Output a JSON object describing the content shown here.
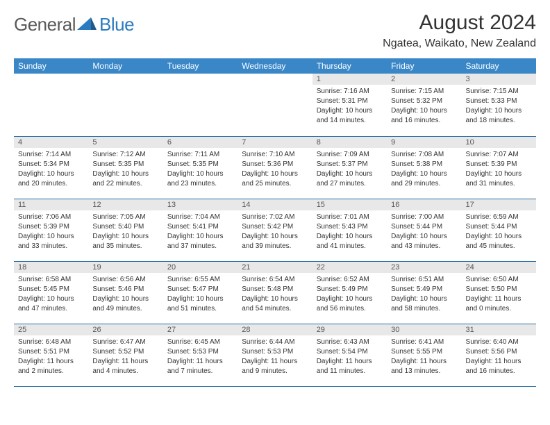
{
  "brand": {
    "text_general": "General",
    "text_blue": "Blue",
    "icon_fill": "#2b7bbf"
  },
  "title": "August 2024",
  "location": "Ngatea, Waikato, New Zealand",
  "colors": {
    "header_bg": "#3a87c8",
    "header_text": "#ffffff",
    "daynum_bg": "#e8e8e8",
    "daynum_text": "#555555",
    "border": "#2b6fa8",
    "body_text": "#333333"
  },
  "weekdays": [
    "Sunday",
    "Monday",
    "Tuesday",
    "Wednesday",
    "Thursday",
    "Friday",
    "Saturday"
  ],
  "weeks": [
    [
      null,
      null,
      null,
      null,
      {
        "n": "1",
        "sunrise": "Sunrise: 7:16 AM",
        "sunset": "Sunset: 5:31 PM",
        "daylight": "Daylight: 10 hours and 14 minutes."
      },
      {
        "n": "2",
        "sunrise": "Sunrise: 7:15 AM",
        "sunset": "Sunset: 5:32 PM",
        "daylight": "Daylight: 10 hours and 16 minutes."
      },
      {
        "n": "3",
        "sunrise": "Sunrise: 7:15 AM",
        "sunset": "Sunset: 5:33 PM",
        "daylight": "Daylight: 10 hours and 18 minutes."
      }
    ],
    [
      {
        "n": "4",
        "sunrise": "Sunrise: 7:14 AM",
        "sunset": "Sunset: 5:34 PM",
        "daylight": "Daylight: 10 hours and 20 minutes."
      },
      {
        "n": "5",
        "sunrise": "Sunrise: 7:12 AM",
        "sunset": "Sunset: 5:35 PM",
        "daylight": "Daylight: 10 hours and 22 minutes."
      },
      {
        "n": "6",
        "sunrise": "Sunrise: 7:11 AM",
        "sunset": "Sunset: 5:35 PM",
        "daylight": "Daylight: 10 hours and 23 minutes."
      },
      {
        "n": "7",
        "sunrise": "Sunrise: 7:10 AM",
        "sunset": "Sunset: 5:36 PM",
        "daylight": "Daylight: 10 hours and 25 minutes."
      },
      {
        "n": "8",
        "sunrise": "Sunrise: 7:09 AM",
        "sunset": "Sunset: 5:37 PM",
        "daylight": "Daylight: 10 hours and 27 minutes."
      },
      {
        "n": "9",
        "sunrise": "Sunrise: 7:08 AM",
        "sunset": "Sunset: 5:38 PM",
        "daylight": "Daylight: 10 hours and 29 minutes."
      },
      {
        "n": "10",
        "sunrise": "Sunrise: 7:07 AM",
        "sunset": "Sunset: 5:39 PM",
        "daylight": "Daylight: 10 hours and 31 minutes."
      }
    ],
    [
      {
        "n": "11",
        "sunrise": "Sunrise: 7:06 AM",
        "sunset": "Sunset: 5:39 PM",
        "daylight": "Daylight: 10 hours and 33 minutes."
      },
      {
        "n": "12",
        "sunrise": "Sunrise: 7:05 AM",
        "sunset": "Sunset: 5:40 PM",
        "daylight": "Daylight: 10 hours and 35 minutes."
      },
      {
        "n": "13",
        "sunrise": "Sunrise: 7:04 AM",
        "sunset": "Sunset: 5:41 PM",
        "daylight": "Daylight: 10 hours and 37 minutes."
      },
      {
        "n": "14",
        "sunrise": "Sunrise: 7:02 AM",
        "sunset": "Sunset: 5:42 PM",
        "daylight": "Daylight: 10 hours and 39 minutes."
      },
      {
        "n": "15",
        "sunrise": "Sunrise: 7:01 AM",
        "sunset": "Sunset: 5:43 PM",
        "daylight": "Daylight: 10 hours and 41 minutes."
      },
      {
        "n": "16",
        "sunrise": "Sunrise: 7:00 AM",
        "sunset": "Sunset: 5:44 PM",
        "daylight": "Daylight: 10 hours and 43 minutes."
      },
      {
        "n": "17",
        "sunrise": "Sunrise: 6:59 AM",
        "sunset": "Sunset: 5:44 PM",
        "daylight": "Daylight: 10 hours and 45 minutes."
      }
    ],
    [
      {
        "n": "18",
        "sunrise": "Sunrise: 6:58 AM",
        "sunset": "Sunset: 5:45 PM",
        "daylight": "Daylight: 10 hours and 47 minutes."
      },
      {
        "n": "19",
        "sunrise": "Sunrise: 6:56 AM",
        "sunset": "Sunset: 5:46 PM",
        "daylight": "Daylight: 10 hours and 49 minutes."
      },
      {
        "n": "20",
        "sunrise": "Sunrise: 6:55 AM",
        "sunset": "Sunset: 5:47 PM",
        "daylight": "Daylight: 10 hours and 51 minutes."
      },
      {
        "n": "21",
        "sunrise": "Sunrise: 6:54 AM",
        "sunset": "Sunset: 5:48 PM",
        "daylight": "Daylight: 10 hours and 54 minutes."
      },
      {
        "n": "22",
        "sunrise": "Sunrise: 6:52 AM",
        "sunset": "Sunset: 5:49 PM",
        "daylight": "Daylight: 10 hours and 56 minutes."
      },
      {
        "n": "23",
        "sunrise": "Sunrise: 6:51 AM",
        "sunset": "Sunset: 5:49 PM",
        "daylight": "Daylight: 10 hours and 58 minutes."
      },
      {
        "n": "24",
        "sunrise": "Sunrise: 6:50 AM",
        "sunset": "Sunset: 5:50 PM",
        "daylight": "Daylight: 11 hours and 0 minutes."
      }
    ],
    [
      {
        "n": "25",
        "sunrise": "Sunrise: 6:48 AM",
        "sunset": "Sunset: 5:51 PM",
        "daylight": "Daylight: 11 hours and 2 minutes."
      },
      {
        "n": "26",
        "sunrise": "Sunrise: 6:47 AM",
        "sunset": "Sunset: 5:52 PM",
        "daylight": "Daylight: 11 hours and 4 minutes."
      },
      {
        "n": "27",
        "sunrise": "Sunrise: 6:45 AM",
        "sunset": "Sunset: 5:53 PM",
        "daylight": "Daylight: 11 hours and 7 minutes."
      },
      {
        "n": "28",
        "sunrise": "Sunrise: 6:44 AM",
        "sunset": "Sunset: 5:53 PM",
        "daylight": "Daylight: 11 hours and 9 minutes."
      },
      {
        "n": "29",
        "sunrise": "Sunrise: 6:43 AM",
        "sunset": "Sunset: 5:54 PM",
        "daylight": "Daylight: 11 hours and 11 minutes."
      },
      {
        "n": "30",
        "sunrise": "Sunrise: 6:41 AM",
        "sunset": "Sunset: 5:55 PM",
        "daylight": "Daylight: 11 hours and 13 minutes."
      },
      {
        "n": "31",
        "sunrise": "Sunrise: 6:40 AM",
        "sunset": "Sunset: 5:56 PM",
        "daylight": "Daylight: 11 hours and 16 minutes."
      }
    ]
  ]
}
